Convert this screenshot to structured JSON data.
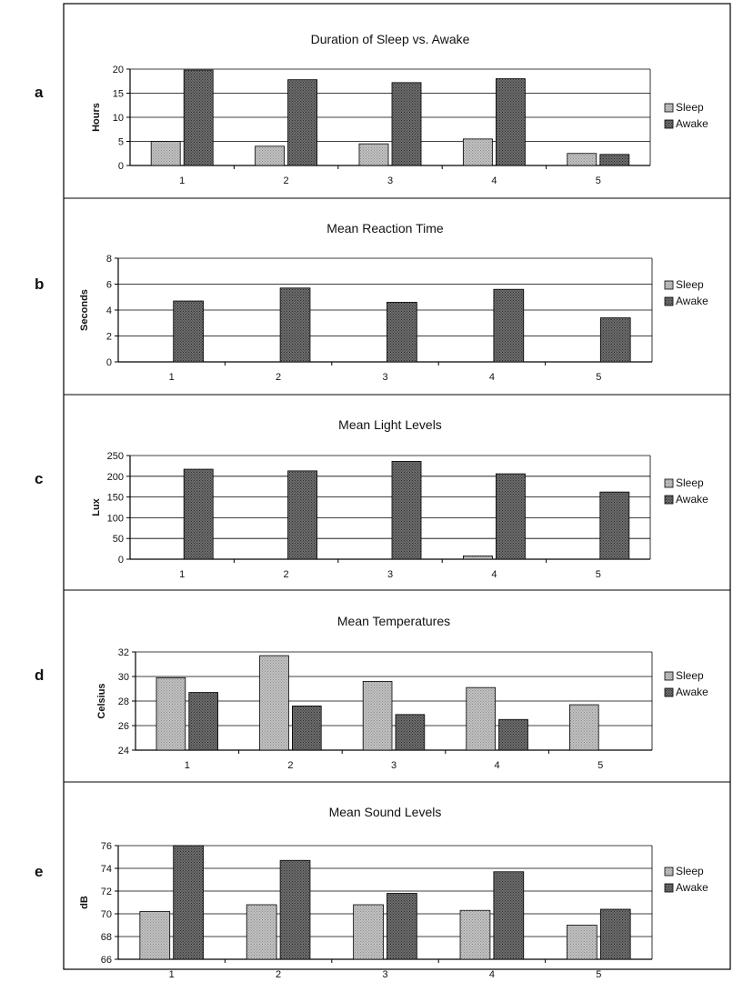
{
  "chart_data": [
    {
      "type": "bar",
      "panel": "a",
      "title": "Duration of Sleep vs. Awake",
      "ylabel": "Hours",
      "xlabel": "",
      "ylim": [
        0,
        20
      ],
      "yticks": [
        "0",
        "5",
        "10",
        "15",
        "20"
      ],
      "categories": [
        "1",
        "2",
        "3",
        "4",
        "5"
      ],
      "series": [
        {
          "name": "Sleep",
          "values": [
            5,
            4,
            4.5,
            5.5,
            2.5
          ]
        },
        {
          "name": "Awake",
          "values": [
            19.8,
            17.8,
            17.2,
            18,
            2.3
          ]
        }
      ],
      "legend": "right",
      "grid": true
    },
    {
      "type": "bar",
      "panel": "b",
      "title": "Mean Reaction Time",
      "ylabel": "Seconds",
      "xlabel": "",
      "ylim": [
        0,
        8
      ],
      "yticks": [
        "0",
        "2",
        "4",
        "6",
        "8"
      ],
      "categories": [
        "1",
        "2",
        "3",
        "4",
        "5"
      ],
      "series": [
        {
          "name": "Sleep",
          "values": [
            0,
            0,
            0,
            0,
            0
          ]
        },
        {
          "name": "Awake",
          "values": [
            4.7,
            5.7,
            4.6,
            5.6,
            3.4
          ]
        }
      ],
      "legend": "right",
      "grid": true
    },
    {
      "type": "bar",
      "panel": "c",
      "title": "Mean Light Levels",
      "ylabel": "Lux",
      "xlabel": "",
      "ylim": [
        0,
        250
      ],
      "yticks": [
        "0",
        "50",
        "100",
        "150",
        "200",
        "250"
      ],
      "categories": [
        "1",
        "2",
        "3",
        "4",
        "5"
      ],
      "series": [
        {
          "name": "Sleep",
          "values": [
            0,
            0,
            0,
            8,
            0
          ]
        },
        {
          "name": "Awake",
          "values": [
            217,
            213,
            236,
            206,
            162
          ]
        }
      ],
      "legend": "right",
      "grid": true
    },
    {
      "type": "bar",
      "panel": "d",
      "title": "Mean Temperatures",
      "ylabel": "Celsius",
      "xlabel": "",
      "ylim": [
        24,
        32
      ],
      "yticks": [
        "24",
        "26",
        "28",
        "30",
        "32"
      ],
      "categories": [
        "1",
        "2",
        "3",
        "4",
        "5"
      ],
      "series": [
        {
          "name": "Sleep",
          "values": [
            29.9,
            31.7,
            29.6,
            29.1,
            27.7
          ]
        },
        {
          "name": "Awake",
          "values": [
            28.7,
            27.6,
            26.9,
            26.5,
            23.8
          ]
        }
      ],
      "legend": "right",
      "grid": true
    },
    {
      "type": "bar",
      "panel": "e",
      "title": "Mean Sound Levels",
      "ylabel": "dB",
      "xlabel": "",
      "ylim": [
        66,
        76
      ],
      "yticks": [
        "66",
        "68",
        "70",
        "72",
        "74",
        "76"
      ],
      "categories": [
        "1",
        "2",
        "3",
        "4",
        "5"
      ],
      "series": [
        {
          "name": "Sleep",
          "values": [
            70.2,
            70.8,
            70.8,
            70.3,
            69
          ]
        },
        {
          "name": "Awake",
          "values": [
            76,
            74.7,
            71.8,
            73.7,
            70.4
          ]
        }
      ],
      "legend": "right",
      "grid": true
    }
  ],
  "colors": {
    "sleep": "#c2c2c2",
    "awake": "#6e6e6e",
    "line": "#000000"
  }
}
